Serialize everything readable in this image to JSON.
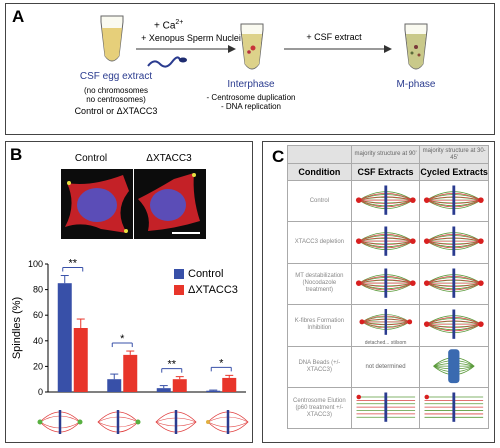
{
  "panel_a": {
    "label": "A",
    "ca_label": "+ Ca",
    "ca_sup": "2+",
    "sperm_label": "+ Xenopus Sperm Nuclei",
    "csf_label": "+ CSF extract",
    "tube1_title": "CSF egg extract",
    "tube1_sub1": "(no chromosomes",
    "tube1_sub2": "no centrosomes)",
    "tube1_sub3": "Control or ΔXTACC3",
    "tube2_title": "Interphase",
    "tube2_sub1": "- Centrosome duplication",
    "tube2_sub2": "- DNA replication",
    "tube3_title": "M-phase"
  },
  "panel_b": {
    "label": "B",
    "img_control": "Control",
    "img_delta": "ΔXTACC3",
    "legend_control": "Control",
    "legend_delta": "ΔXTACC3",
    "colors": {
      "control": "#3850a8",
      "delta": "#e8352a"
    }
  },
  "panel_c": {
    "label": "C",
    "top_csf": "majority structure at 90'",
    "top_cyc": "majority structure at 30-45'",
    "hdr_condition": "Condition",
    "hdr_csf": "CSF Extracts",
    "hdr_cyc": "Cycled Extracts",
    "rows": [
      {
        "condition": "Control",
        "note": ""
      },
      {
        "condition": "XTACC3 depletion",
        "note": ""
      },
      {
        "condition": "MT destabilization (Nocodazole treatment)",
        "note": ""
      },
      {
        "condition": "K-fibres Formation Inhibition",
        "note": "detached... stilsom"
      },
      {
        "condition": "DNA Beads (+/- XTACC3)",
        "note": "not determined"
      },
      {
        "condition": "Centrosome Elution (p60 treatment +/- XTACC3)",
        "note": ""
      }
    ]
  },
  "chart_data": {
    "type": "bar",
    "ylabel": "Spindles (%)",
    "ylim": [
      0,
      100
    ],
    "yticks": [
      0,
      20,
      40,
      60,
      80,
      100
    ],
    "categories": [
      "bipolar",
      "monopolar",
      "multipolar",
      "disorganized"
    ],
    "series": [
      {
        "name": "Control",
        "values": [
          85,
          10,
          3,
          1
        ],
        "errors": [
          6,
          4,
          2,
          0.5
        ]
      },
      {
        "name": "ΔXTACC3",
        "values": [
          50,
          29,
          10,
          11
        ],
        "errors": [
          7,
          3,
          2,
          2
        ]
      }
    ],
    "significance": [
      "**",
      "*",
      "**",
      "*"
    ]
  }
}
